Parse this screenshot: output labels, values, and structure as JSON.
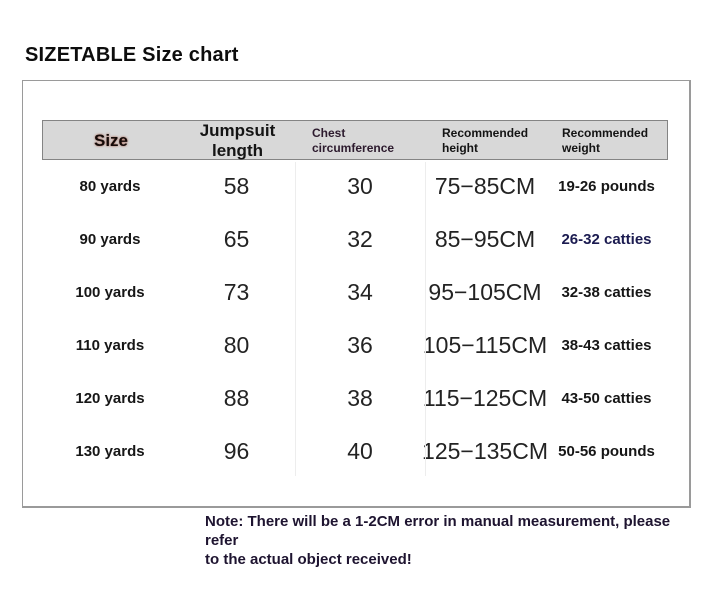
{
  "title": "SIZETABLE Size chart",
  "table": {
    "headers": [
      "Size",
      "Jumpsuit length",
      "Chest circumference",
      "Recommended height",
      "Recommended weight"
    ],
    "rows": [
      {
        "size": "80 yards",
        "length": "58",
        "chest": "30",
        "height": "75−85CM",
        "weight": "19-26 pounds"
      },
      {
        "size": "90 yards",
        "length": "65",
        "chest": "32",
        "height": "85−95CM",
        "weight": "26-32 catties"
      },
      {
        "size": "100 yards",
        "length": "73",
        "chest": "34",
        "height": "95−105CM",
        "weight": "32-38 catties"
      },
      {
        "size": "110 yards",
        "length": "80",
        "chest": "36",
        "height": "105−115CM",
        "weight": "38-43 catties"
      },
      {
        "size": "120 yards",
        "length": "88",
        "chest": "38",
        "height": "115−125CM",
        "weight": "43-50 catties"
      },
      {
        "size": "130 yards",
        "length": "96",
        "chest": "40",
        "height": "125−135CM",
        "weight": "50-56 pounds"
      }
    ]
  },
  "note": {
    "line1": "Note: There will be a 1-2CM error in manual measurement, please refer",
    "line2": "to the actual object received!"
  },
  "colors": {
    "header_fill": "#d8d8d8",
    "header_border": "#848484",
    "panel_border": "#9a9a9a",
    "size_header_glow": "#963e28",
    "chest_header_text": "#2d1b2e",
    "navy_weight_text": "#1b1b50",
    "body_text": "#161616"
  },
  "chart_data": {
    "type": "table",
    "title": "SIZETABLE Size chart",
    "columns": [
      "Size",
      "Jumpsuit length",
      "Chest circumference",
      "Recommended height",
      "Recommended weight"
    ],
    "rows": [
      [
        "80 yards",
        58,
        30,
        "75-85CM",
        "19-26 pounds"
      ],
      [
        "90 yards",
        65,
        32,
        "85-95CM",
        "26-32 catties"
      ],
      [
        "100 yards",
        73,
        34,
        "95-105CM",
        "32-38 catties"
      ],
      [
        "110 yards",
        80,
        36,
        "105-115CM",
        "38-43 catties"
      ],
      [
        "120 yards",
        88,
        38,
        "115-125CM",
        "43-50 catties"
      ],
      [
        "130 yards",
        96,
        40,
        "125-135CM",
        "50-56 pounds"
      ]
    ],
    "note": "Note: There will be a 1-2CM error in manual measurement, please refer to the actual object received!"
  }
}
